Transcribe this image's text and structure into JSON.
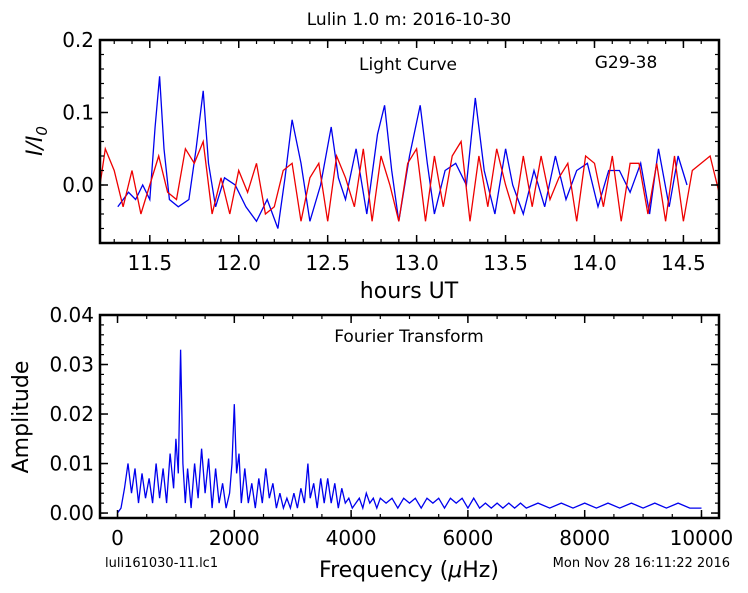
{
  "figure": {
    "title": "Lulin 1.0 m:  2016-10-30",
    "footer_left": "luli161030-11.lc1",
    "footer_right": "Mon Nov 28 16:11:22 2016"
  },
  "chart_data": [
    {
      "type": "line",
      "annotations": [
        "Light Curve",
        "G29-38"
      ],
      "xlabel": "hours UT",
      "ylabel": "I/I",
      "ylabel_subscript": "0",
      "xlim": [
        11.22,
        14.7
      ],
      "ylim": [
        -0.08,
        0.2
      ],
      "xticks": [
        11.5,
        12.0,
        12.5,
        13.0,
        13.5,
        14.0,
        14.5
      ],
      "xtick_labels": [
        "11.5",
        "12.0",
        "12.5",
        "13.0",
        "13.5",
        "14.0",
        "14.5"
      ],
      "yticks": [
        0.0,
        0.1,
        0.2
      ],
      "ytick_labels": [
        "0.0",
        "0.1",
        "0.2"
      ],
      "series": [
        {
          "color": "#0000ee",
          "x": [
            11.32,
            11.38,
            11.42,
            11.46,
            11.5,
            11.53,
            11.555,
            11.58,
            11.61,
            11.66,
            11.72,
            11.76,
            11.8,
            11.83,
            11.87,
            11.92,
            11.98,
            12.04,
            12.1,
            12.16,
            12.22,
            12.26,
            12.3,
            12.35,
            12.4,
            12.46,
            12.52,
            12.56,
            12.6,
            12.66,
            12.72,
            12.78,
            12.82,
            12.86,
            12.9,
            12.96,
            13.02,
            13.06,
            13.1,
            13.16,
            13.22,
            13.28,
            13.33,
            13.38,
            13.44,
            13.5,
            13.54,
            13.6,
            13.66,
            13.72,
            13.78,
            13.84,
            13.9,
            13.96,
            14.02,
            14.08,
            14.14,
            14.2,
            14.26,
            14.31,
            14.36,
            14.42,
            14.47,
            14.52
          ],
          "y": [
            -0.03,
            -0.01,
            -0.02,
            0.0,
            -0.02,
            0.08,
            0.15,
            0.05,
            -0.02,
            -0.03,
            -0.02,
            0.05,
            0.13,
            0.03,
            -0.03,
            0.01,
            0.0,
            -0.03,
            -0.05,
            -0.02,
            -0.06,
            0.01,
            0.09,
            0.03,
            -0.05,
            0.0,
            0.08,
            0.01,
            -0.02,
            0.05,
            -0.04,
            0.07,
            0.11,
            0.02,
            -0.05,
            0.04,
            0.11,
            0.03,
            -0.04,
            0.02,
            0.03,
            0.0,
            0.12,
            0.02,
            -0.04,
            0.05,
            0.0,
            -0.04,
            0.02,
            -0.03,
            0.04,
            -0.02,
            0.02,
            0.03,
            -0.03,
            0.02,
            0.02,
            -0.01,
            0.03,
            -0.04,
            0.05,
            -0.03,
            0.04,
            0.0
          ]
        },
        {
          "color": "#ee0000",
          "x": [
            11.22,
            11.25,
            11.3,
            11.35,
            11.4,
            11.45,
            11.5,
            11.55,
            11.6,
            11.65,
            11.7,
            11.75,
            11.8,
            11.85,
            11.9,
            11.95,
            12.0,
            12.05,
            12.1,
            12.15,
            12.2,
            12.25,
            12.3,
            12.35,
            12.4,
            12.45,
            12.5,
            12.55,
            12.6,
            12.65,
            12.7,
            12.75,
            12.8,
            12.85,
            12.9,
            12.95,
            13.0,
            13.05,
            13.1,
            13.15,
            13.2,
            13.25,
            13.3,
            13.35,
            13.4,
            13.45,
            13.5,
            13.55,
            13.6,
            13.65,
            13.7,
            13.75,
            13.8,
            13.85,
            13.9,
            13.95,
            14.0,
            14.05,
            14.1,
            14.15,
            14.2,
            14.25,
            14.3,
            14.35,
            14.4,
            14.45,
            14.5,
            14.55,
            14.6,
            14.65,
            14.7
          ],
          "y": [
            0.0,
            0.05,
            0.02,
            -0.03,
            0.02,
            -0.04,
            0.0,
            0.04,
            -0.01,
            -0.02,
            0.05,
            0.03,
            0.06,
            -0.04,
            0.01,
            -0.04,
            0.02,
            -0.01,
            0.03,
            -0.04,
            -0.03,
            0.02,
            0.03,
            -0.05,
            0.01,
            0.03,
            -0.05,
            0.04,
            0.01,
            -0.03,
            0.05,
            -0.05,
            0.04,
            0.0,
            -0.05,
            0.03,
            0.05,
            -0.05,
            0.04,
            -0.03,
            0.04,
            0.06,
            -0.05,
            0.04,
            -0.03,
            0.05,
            0.0,
            -0.04,
            0.04,
            -0.03,
            0.04,
            -0.02,
            0.01,
            0.03,
            -0.05,
            0.04,
            0.03,
            -0.03,
            0.04,
            -0.05,
            0.03,
            0.03,
            -0.04,
            0.03,
            -0.05,
            0.04,
            -0.05,
            0.02,
            0.03,
            0.04,
            -0.01
          ]
        }
      ]
    },
    {
      "type": "line",
      "annotations": [
        "Fourier Transform"
      ],
      "xlabel": "Frequency (",
      "xlabel_greek": "μ",
      "xlabel_unit": "Hz)",
      "ylabel": "Amplitude",
      "xlim": [
        -300,
        10300
      ],
      "ylim": [
        -0.001,
        0.04
      ],
      "xticks": [
        0,
        2000,
        4000,
        6000,
        8000,
        10000
      ],
      "xtick_labels": [
        "0",
        "2000",
        "4000",
        "6000",
        "8000",
        "10000"
      ],
      "yticks": [
        0.0,
        0.01,
        0.02,
        0.03,
        0.04
      ],
      "ytick_labels": [
        "0.00",
        "0.01",
        "0.02",
        "0.03",
        "0.04"
      ],
      "series": [
        {
          "color": "#0000ee",
          "x": [
            0,
            60,
            120,
            180,
            240,
            300,
            360,
            420,
            480,
            540,
            600,
            660,
            720,
            780,
            840,
            900,
            960,
            1000,
            1040,
            1080,
            1120,
            1160,
            1200,
            1260,
            1320,
            1380,
            1440,
            1500,
            1560,
            1620,
            1680,
            1740,
            1800,
            1860,
            1920,
            1960,
            2000,
            2040,
            2080,
            2120,
            2180,
            2240,
            2300,
            2360,
            2420,
            2480,
            2540,
            2600,
            2660,
            2720,
            2780,
            2840,
            2900,
            2960,
            3020,
            3080,
            3140,
            3200,
            3260,
            3300,
            3360,
            3420,
            3480,
            3540,
            3600,
            3660,
            3720,
            3780,
            3840,
            3900,
            3960,
            4020,
            4080,
            4140,
            4200,
            4260,
            4320,
            4380,
            4440,
            4500,
            4600,
            4700,
            4800,
            4900,
            5000,
            5100,
            5200,
            5300,
            5400,
            5500,
            5600,
            5700,
            5800,
            5900,
            6000,
            6100,
            6200,
            6300,
            6400,
            6500,
            6600,
            6700,
            6800,
            6900,
            7000,
            7200,
            7400,
            7600,
            7800,
            8000,
            8200,
            8400,
            8600,
            8800,
            9000,
            9200,
            9400,
            9600,
            9800,
            10000
          ],
          "y": [
            0.0,
            0.001,
            0.005,
            0.01,
            0.004,
            0.009,
            0.002,
            0.008,
            0.003,
            0.007,
            0.002,
            0.01,
            0.003,
            0.009,
            0.002,
            0.012,
            0.005,
            0.015,
            0.008,
            0.033,
            0.01,
            0.002,
            0.009,
            0.001,
            0.01,
            0.003,
            0.013,
            0.004,
            0.011,
            0.001,
            0.009,
            0.002,
            0.006,
            0.001,
            0.004,
            0.01,
            0.022,
            0.008,
            0.012,
            0.002,
            0.009,
            0.002,
            0.006,
            0.001,
            0.007,
            0.002,
            0.009,
            0.003,
            0.006,
            0.001,
            0.004,
            0.001,
            0.003,
            0.001,
            0.004,
            0.001,
            0.005,
            0.002,
            0.01,
            0.003,
            0.006,
            0.001,
            0.007,
            0.002,
            0.007,
            0.002,
            0.006,
            0.001,
            0.005,
            0.002,
            0.003,
            0.001,
            0.002,
            0.003,
            0.001,
            0.004,
            0.002,
            0.003,
            0.001,
            0.003,
            0.002,
            0.003,
            0.001,
            0.003,
            0.002,
            0.003,
            0.001,
            0.003,
            0.002,
            0.003,
            0.001,
            0.003,
            0.002,
            0.003,
            0.001,
            0.003,
            0.001,
            0.002,
            0.001,
            0.002,
            0.001,
            0.002,
            0.001,
            0.002,
            0.001,
            0.002,
            0.001,
            0.002,
            0.001,
            0.002,
            0.001,
            0.002,
            0.001,
            0.002,
            0.001,
            0.002,
            0.001,
            0.002,
            0.001,
            0.001
          ]
        }
      ]
    }
  ]
}
